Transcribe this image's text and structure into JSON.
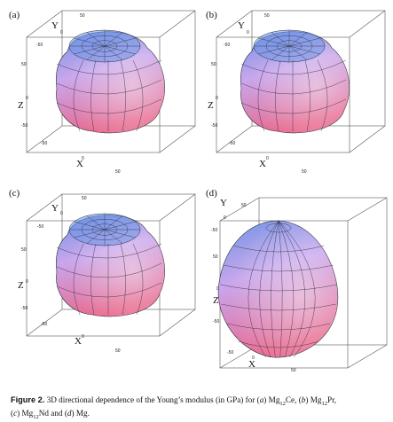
{
  "panels": [
    {
      "label": "(a)",
      "kind": "cube",
      "ticks": {
        "y_top": "50",
        "y_mid": "0",
        "y_low": "-50",
        "z_top": "50",
        "z_mid": "0",
        "z_low": "-50",
        "x_low": "-50",
        "x_mid": "0",
        "x_high": "50"
      }
    },
    {
      "label": "(b)",
      "kind": "cube",
      "ticks": {
        "y_top": "50",
        "y_mid": "0",
        "y_low": "-50",
        "z_top": "50",
        "z_mid": "0",
        "z_low": "-50",
        "x_low": "-50",
        "x_mid": "0",
        "x_high": "50"
      }
    },
    {
      "label": "(c)",
      "kind": "cube",
      "ticks": {
        "y_top": "50",
        "y_mid": "0",
        "y_low": "-50",
        "z_top": "50",
        "z_mid": "0",
        "z_low": "-50",
        "x_low": "-50",
        "x_mid": "0",
        "x_high": "50"
      }
    },
    {
      "label": "(d)",
      "kind": "egg",
      "ticks": {
        "y_top": "50",
        "y_mid": "0",
        "y_low": "-50",
        "z_top": "50",
        "z_mid": "0",
        "z_low": "-50",
        "x_low": "-50",
        "x_mid": "0",
        "x_high": "50"
      }
    }
  ],
  "axes": {
    "x": "X",
    "y": "Y",
    "z": "Z"
  },
  "colors": {
    "top": "#6f95e6",
    "mid": "#c9a6ec",
    "bottom": "#e86a8f",
    "edge": "#2a2a3a"
  },
  "caption": {
    "fig": "Figure 2.",
    "t1": " 3D directional dependence of the Young’s modulus (in GPa) for (",
    "a": "a",
    "t2": ") Mg",
    "s12a": "12",
    "t3": "Ce, (",
    "b": "b",
    "t4": ") Mg",
    "s12b": "12",
    "t5": "Pr,",
    "t6": "(",
    "c": "c",
    "t7": ") Mg",
    "s12c": "12",
    "t8": "Nd and (",
    "d": "d",
    "t9": ") Mg."
  }
}
